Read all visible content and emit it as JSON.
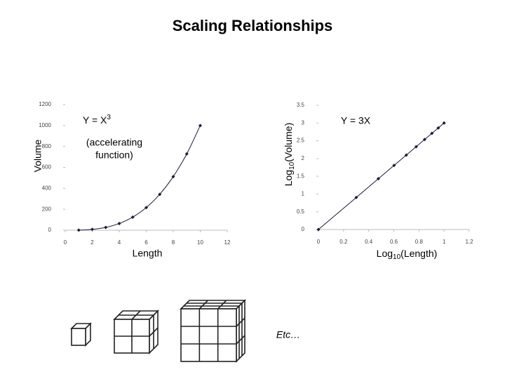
{
  "title": "Scaling Relationships",
  "chart_data": [
    {
      "type": "line",
      "curve": "smooth",
      "color": "#1a1a3a",
      "annotation": {
        "text": "Y = X",
        "superscript": "3"
      },
      "note": [
        "(accelerating",
        "function)"
      ],
      "x_label": "Length",
      "y_label": "Volume",
      "x": [
        1,
        2,
        3,
        4,
        5,
        6,
        7,
        8,
        9,
        10
      ],
      "series": [
        {
          "values": [
            1,
            8,
            27,
            64,
            125,
            216,
            343,
            512,
            729,
            1000
          ]
        }
      ],
      "xlim": [
        0,
        12
      ],
      "xticks": [
        0,
        2,
        4,
        6,
        8,
        10,
        12
      ],
      "ylim": [
        0,
        1200
      ],
      "yticks": [
        0,
        200,
        400,
        600,
        800,
        1000,
        1200
      ]
    },
    {
      "type": "line",
      "curve": "straight",
      "color": "#1a1a3a",
      "annotation": "Y = 3X",
      "x_label": {
        "prefix": "Log",
        "sub": "10",
        "suffix": "(Length)"
      },
      "y_label": {
        "prefix": "Log",
        "sub": "10",
        "suffix": "(Volume)"
      },
      "x": [
        0,
        0.301,
        0.477,
        0.602,
        0.699,
        0.778,
        0.845,
        0.903,
        0.954,
        1
      ],
      "series": [
        {
          "values": [
            0,
            0.903,
            1.431,
            1.806,
            2.097,
            2.334,
            2.535,
            2.709,
            2.863,
            3
          ]
        }
      ],
      "xlim": [
        0,
        1.2
      ],
      "xticks": [
        0,
        0.2,
        0.4,
        0.6,
        0.8,
        1,
        1.2
      ],
      "ylim": [
        0,
        3.5
      ],
      "yticks": [
        0,
        0.5,
        1,
        1.5,
        2,
        2.5,
        3,
        3.5
      ]
    }
  ],
  "footer": "Etc…"
}
